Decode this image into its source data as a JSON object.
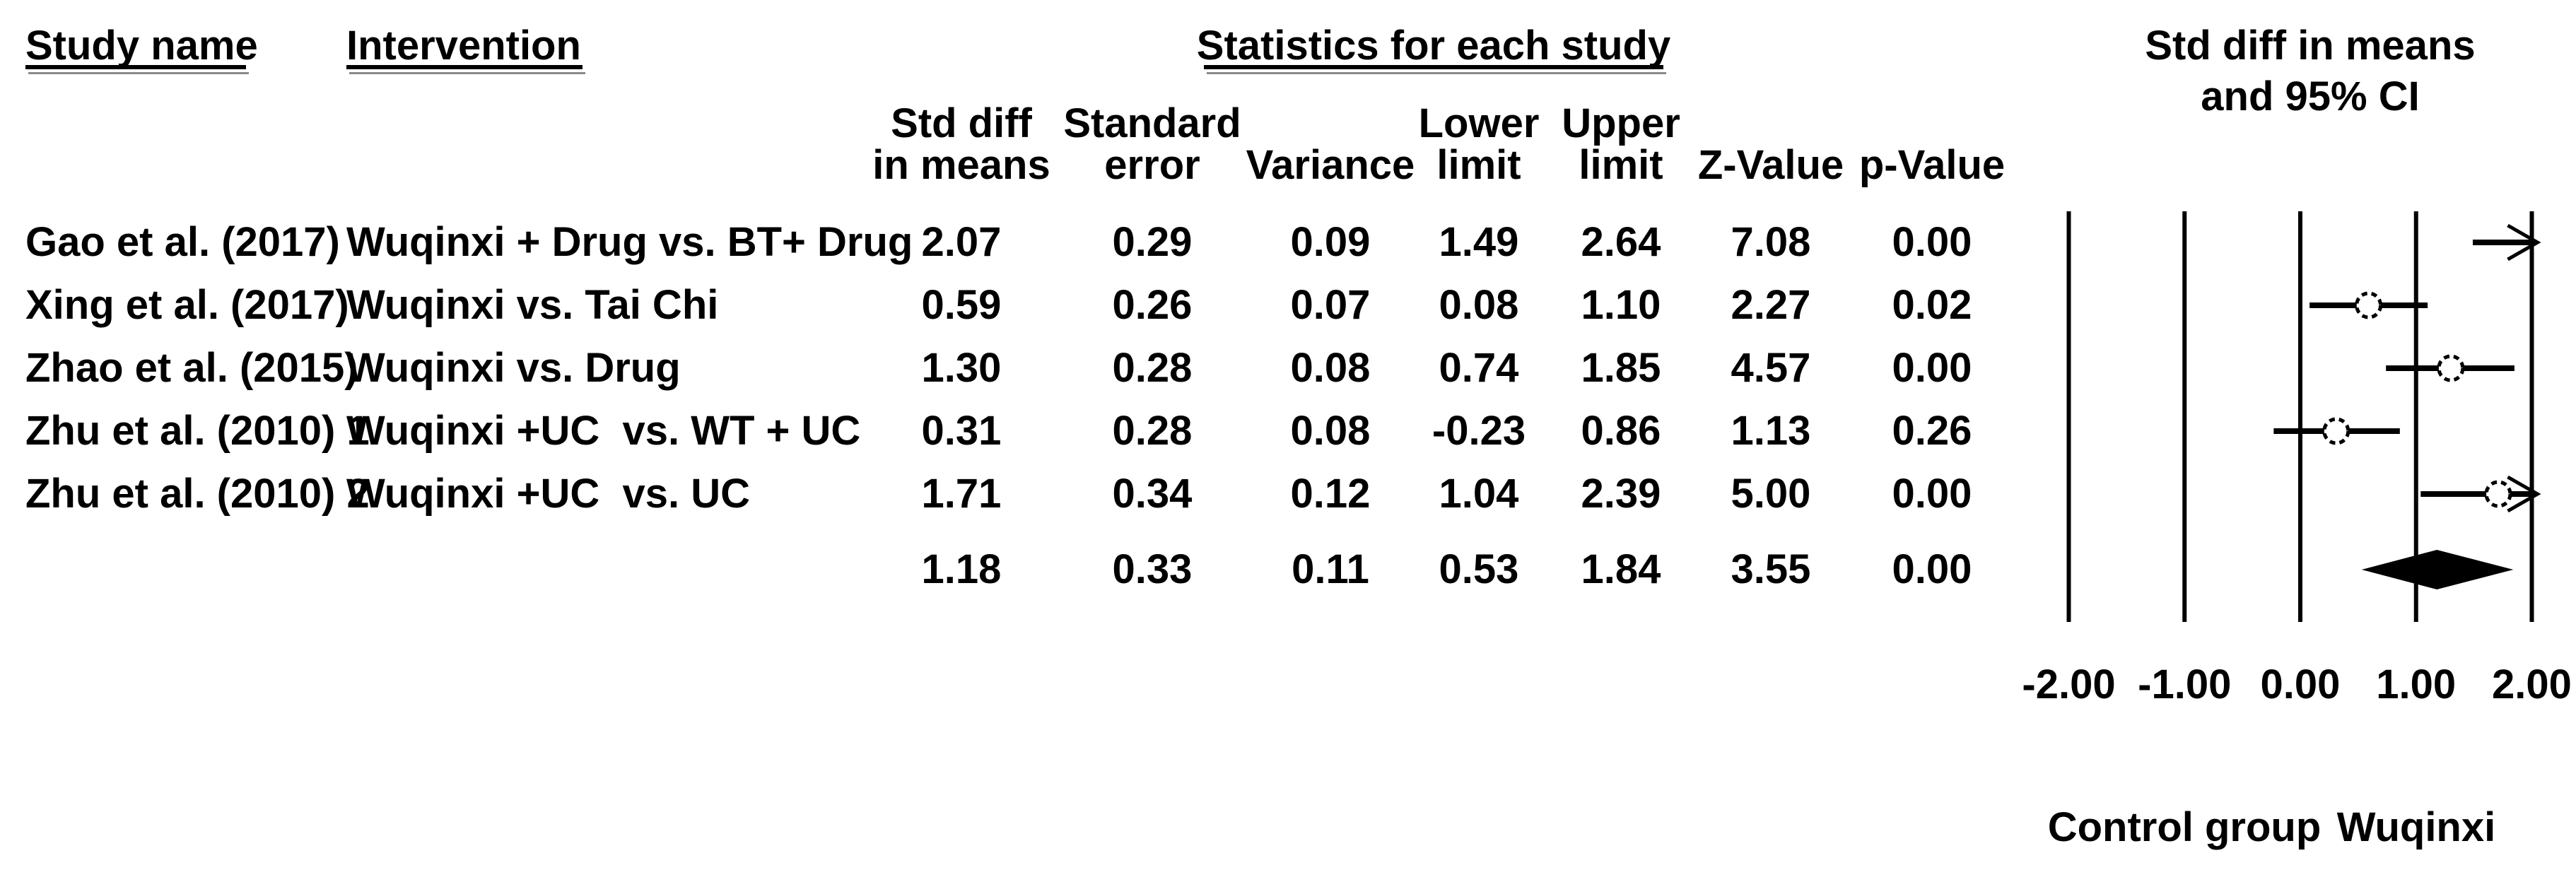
{
  "header": {
    "study_name": "Study name",
    "intervention": "Intervention",
    "statistics": "Statistics for each study",
    "effect_title_line1": "Std diff in means",
    "effect_title_line2": "and 95% CI"
  },
  "stat_headers": {
    "col1_line1": "Std diff",
    "col1_line2": "in means",
    "col2_line1": "Standard",
    "col2_line2": "error",
    "col3_line2": "Variance",
    "col4_line1": "Lower",
    "col4_line2": "limit",
    "col5_line1": "Upper",
    "col5_line2": "limit",
    "col6_line2": "Z-Value",
    "col7_line2": "p-Value"
  },
  "footer": {
    "left_label": "Control group",
    "right_label": "Wuqinxi"
  },
  "chart_data": {
    "type": "forest",
    "title": "Statistics for each study",
    "effect_label": "Std diff in means and 95% CI",
    "xlim": [
      -2.0,
      2.0
    ],
    "x_ticks": [
      -2.0,
      -1.0,
      0.0,
      1.0,
      2.0
    ],
    "x_tick_labels": [
      "-2.00",
      "-1.00",
      "0.00",
      "1.00",
      "2.00"
    ],
    "grid": "vertical-lines-at-ticks",
    "direction_labels": {
      "negative_side": "Control group",
      "positive_side": "Wuqinxi"
    },
    "columns": [
      "Std diff in means",
      "Standard error",
      "Variance",
      "Lower limit",
      "Upper limit",
      "Z-Value",
      "p-Value"
    ],
    "studies": [
      {
        "study": "Gao et al. (2017)",
        "intervention": "Wuqinxi + Drug vs. BT+ Drug",
        "std_diff_in_means": 2.07,
        "standard_error": 0.29,
        "variance": 0.09,
        "lower_limit": 1.49,
        "upper_limit": 2.64,
        "z_value": 7.08,
        "p_value": 0.0,
        "display": [
          "2.07",
          "0.29",
          "0.09",
          "1.49",
          "2.64",
          "7.08",
          "0.00"
        ]
      },
      {
        "study": "Xing et al. (2017)",
        "intervention": "Wuqinxi vs. Tai Chi",
        "std_diff_in_means": 0.59,
        "standard_error": 0.26,
        "variance": 0.07,
        "lower_limit": 0.08,
        "upper_limit": 1.1,
        "z_value": 2.27,
        "p_value": 0.02,
        "display": [
          "0.59",
          "0.26",
          "0.07",
          "0.08",
          "1.10",
          "2.27",
          "0.02"
        ]
      },
      {
        "study": "Zhao et al. (2015)",
        "intervention": "Wuqinxi vs. Drug",
        "std_diff_in_means": 1.3,
        "standard_error": 0.28,
        "variance": 0.08,
        "lower_limit": 0.74,
        "upper_limit": 1.85,
        "z_value": 4.57,
        "p_value": 0.0,
        "display": [
          "1.30",
          "0.28",
          "0.08",
          "0.74",
          "1.85",
          "4.57",
          "0.00"
        ]
      },
      {
        "study": "Zhu et al. (2010) 1",
        "intervention": "Wuqinxi +UC  vs. WT + UC",
        "std_diff_in_means": 0.31,
        "standard_error": 0.28,
        "variance": 0.08,
        "lower_limit": -0.23,
        "upper_limit": 0.86,
        "z_value": 1.13,
        "p_value": 0.26,
        "display": [
          "0.31",
          "0.28",
          "0.08",
          "-0.23",
          "0.86",
          "1.13",
          "0.26"
        ]
      },
      {
        "study": "Zhu et al. (2010) 2",
        "intervention": "Wuqinxi +UC  vs. UC",
        "std_diff_in_means": 1.71,
        "standard_error": 0.34,
        "variance": 0.12,
        "lower_limit": 1.04,
        "upper_limit": 2.39,
        "z_value": 5.0,
        "p_value": 0.0,
        "display": [
          "1.71",
          "0.34",
          "0.12",
          "1.04",
          "2.39",
          "5.00",
          "0.00"
        ]
      }
    ],
    "summary": {
      "study": "",
      "intervention": "",
      "std_diff_in_means": 1.18,
      "standard_error": 0.33,
      "variance": 0.11,
      "lower_limit": 0.53,
      "upper_limit": 1.84,
      "z_value": 3.55,
      "p_value": 0.0,
      "display": [
        "1.18",
        "0.33",
        "0.11",
        "0.53",
        "1.84",
        "3.55",
        "0.00"
      ]
    },
    "marker_style": {
      "point": "open-circle-dashed-outline",
      "summary": "filled-diamond",
      "clipped_ci": "arrow",
      "color": "#000000"
    }
  }
}
